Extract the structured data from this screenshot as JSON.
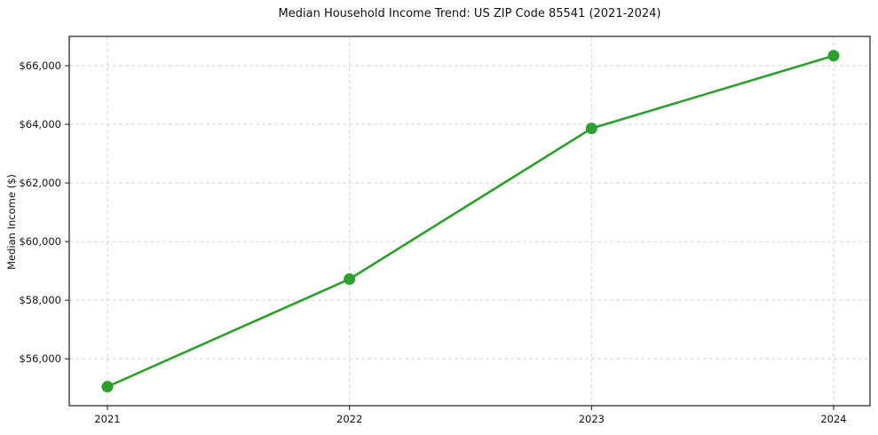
{
  "header": {
    "title": "Median Household Income Trend: US ZIP Code 85541 (2021-2024)"
  },
  "chart_data": {
    "type": "line",
    "title": "Median Household Income Trend: US ZIP Code 85541 (2021-2024)",
    "xlabel": "",
    "ylabel": "Median Income ($)",
    "x": [
      2021,
      2022,
      2023,
      2024
    ],
    "x_tick_labels": [
      "2021",
      "2022",
      "2023",
      "2024"
    ],
    "values": [
      55050,
      58720,
      63860,
      66340
    ],
    "yticks": [
      56000,
      58000,
      60000,
      62000,
      64000,
      66000
    ],
    "ytick_labels": [
      "$56,000",
      "$58,000",
      "$60,000",
      "$62,000",
      "$64,000",
      "$66,000"
    ],
    "ylim": [
      54400,
      67000
    ],
    "grid": true,
    "legend": "none",
    "line_color": "#2ca02c",
    "marker_color": "#2ca02c",
    "grid_color": "#d3d3d3",
    "spine_color": "#1a1a1a"
  }
}
